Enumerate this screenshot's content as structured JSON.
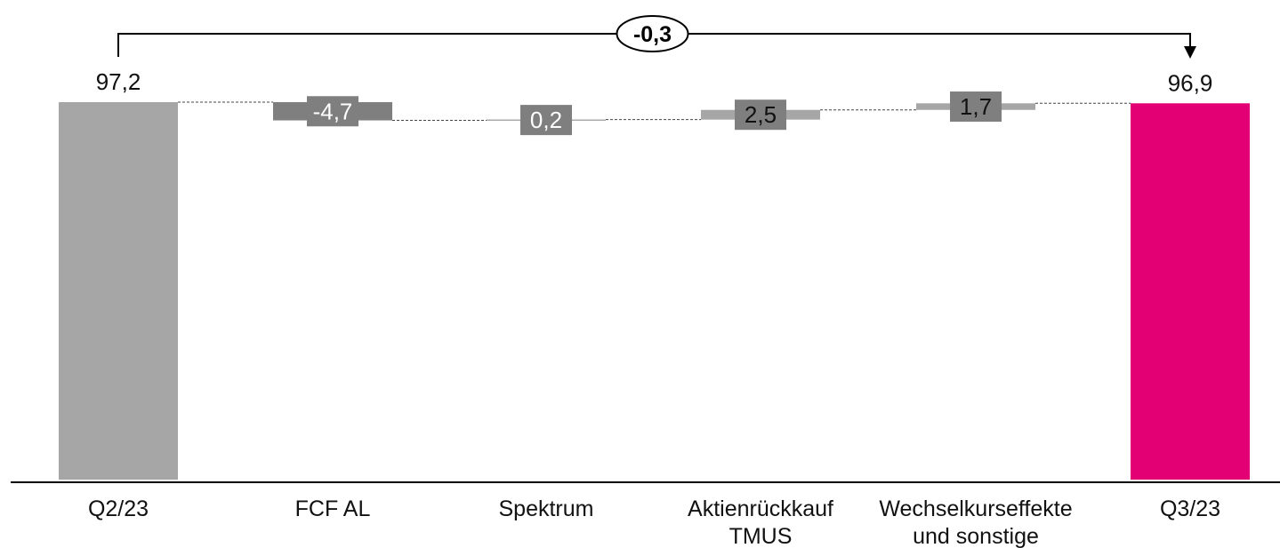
{
  "chart_data": {
    "type": "waterfall",
    "categories": [
      [
        "Q2/23"
      ],
      [
        "FCF AL"
      ],
      [
        "Spektrum"
      ],
      [
        "Aktienrückkauf",
        "TMUS"
      ],
      [
        "Wechselkurseffekte",
        "und sonstige"
      ],
      [
        "Q3/23"
      ]
    ],
    "values": [
      97.2,
      -4.7,
      0.2,
      2.5,
      1.7,
      96.9
    ],
    "value_labels": [
      "97,2",
      "-4,7",
      "0,2",
      "2,5",
      "1,7",
      "96,9"
    ],
    "bar_kind": [
      "total",
      "delta",
      "delta",
      "delta",
      "delta",
      "total"
    ],
    "total_change": {
      "label": "-0,3",
      "from": "Q2/23",
      "to": "Q3/23"
    },
    "colors": {
      "start_total": "#a6a6a6",
      "end_total": "#e20074",
      "negative_delta": "#7f7f7f",
      "positive_delta": "#a6a6a6",
      "small_delta": "#7f7f7f",
      "connector": "#444444",
      "axis": "#000000"
    }
  }
}
